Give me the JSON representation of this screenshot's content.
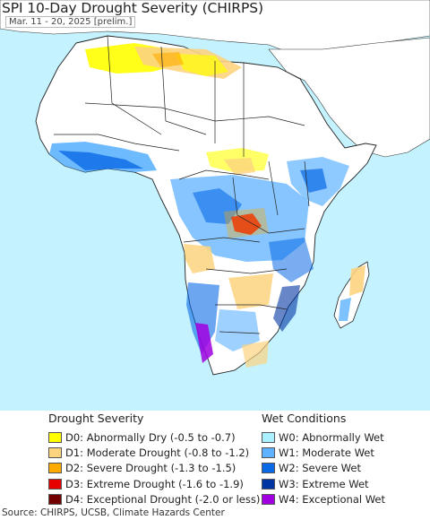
{
  "title": "SPI 10-Day Drought Severity (CHIRPS)",
  "subtitle": "Mar. 11 - 20, 2025 [prelim.]",
  "colors": {
    "ocean": "#c4f3ff",
    "land_normal": "#ffffff",
    "outside_land": "#ffffff",
    "border": "#222222"
  },
  "legend_drought": {
    "heading": "Drought Severity",
    "items": [
      {
        "label": "D0: Abnormally Dry (-0.5 to -0.7)",
        "color": "#ffff00"
      },
      {
        "label": "D1: Moderate Drought (-0.8 to -1.2)",
        "color": "#fcd37f"
      },
      {
        "label": "D2: Severe Drought (-1.3 to -1.5)",
        "color": "#ffaa00"
      },
      {
        "label": "D3: Extreme Drought (-1.6 to -1.9)",
        "color": "#e60000"
      },
      {
        "label": "D4: Exceptional Drought (-2.0 or less)",
        "color": "#730000"
      }
    ]
  },
  "legend_wet": {
    "heading": "Wet Conditions",
    "items": [
      {
        "label": "W0: Abnormally Wet",
        "color": "#aaf0ff"
      },
      {
        "label": "W1: Moderate Wet",
        "color": "#5eb2ff"
      },
      {
        "label": "W2: Severe Wet",
        "color": "#0a6ae6"
      },
      {
        "label": "W3: Extreme Wet",
        "color": "#0035a3"
      },
      {
        "label": "W4: Exceptional Wet",
        "color": "#a000e0"
      }
    ]
  },
  "source": "Source: CHIRPS, UCSB, Climate Hazards Center"
}
